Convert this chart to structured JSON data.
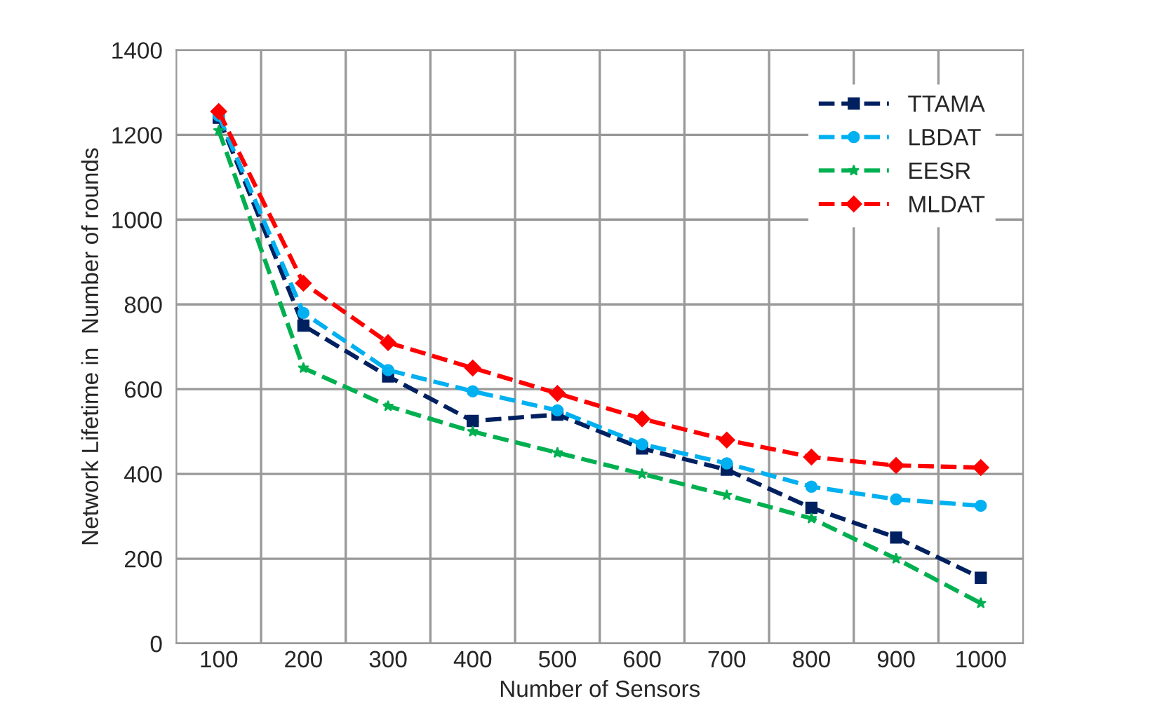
{
  "chart_data": {
    "type": "line",
    "xlabel": "Number of Sensors",
    "ylabel": "Network Lifetime in  Number of rounds",
    "categories": [
      "100",
      "200",
      "300",
      "400",
      "500",
      "600",
      "700",
      "800",
      "900",
      "1000"
    ],
    "ylim": [
      0,
      1400
    ],
    "yticks": [
      0,
      200,
      400,
      600,
      800,
      1000,
      1200,
      1400
    ],
    "grid": true,
    "legend": "top right",
    "line_style": "dashed",
    "series": [
      {
        "name": "TTAMA",
        "color": "#002060",
        "marker": "square",
        "values": [
          1240,
          750,
          630,
          525,
          540,
          460,
          410,
          320,
          250,
          155
        ]
      },
      {
        "name": "LBDAT",
        "color": "#00b0f0",
        "marker": "circle",
        "values": [
          1245,
          780,
          645,
          595,
          550,
          470,
          425,
          370,
          340,
          325
        ]
      },
      {
        "name": "EESR",
        "color": "#00b050",
        "marker": "star",
        "values": [
          1210,
          650,
          560,
          500,
          450,
          400,
          350,
          295,
          200,
          95
        ]
      },
      {
        "name": "MLDAT",
        "color": "#ff0000",
        "marker": "diamond",
        "values": [
          1255,
          850,
          710,
          650,
          590,
          530,
          480,
          440,
          420,
          415
        ]
      }
    ]
  }
}
